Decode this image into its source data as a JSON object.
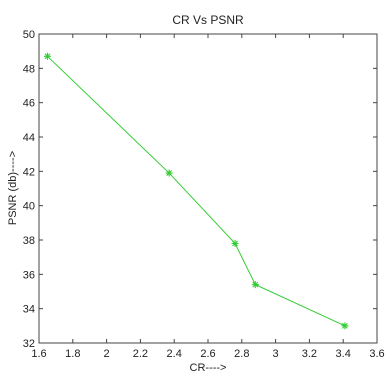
{
  "chart_data": {
    "type": "line",
    "title": "CR Vs PSNR",
    "xlabel": "CR---->",
    "ylabel": "PSNR (db)---->",
    "xlim": [
      1.6,
      3.6
    ],
    "ylim": [
      32,
      50
    ],
    "xticks": [
      1.6,
      1.8,
      2,
      2.2,
      2.4,
      2.6,
      2.8,
      3,
      3.2,
      3.4,
      3.6
    ],
    "xtick_labels": [
      "1.6",
      "1.8",
      "2",
      "2.2",
      "2.4",
      "2.6",
      "2.8",
      "3",
      "3.2",
      "3.4",
      "3.6"
    ],
    "yticks": [
      32,
      34,
      36,
      38,
      40,
      42,
      44,
      46,
      48,
      50
    ],
    "ytick_labels": [
      "32",
      "34",
      "36",
      "38",
      "40",
      "42",
      "44",
      "46",
      "48",
      "50"
    ],
    "grid": false,
    "series": [
      {
        "color": "#33cc33",
        "marker": "asterisk",
        "x": [
          1.65,
          2.37,
          2.76,
          2.88,
          3.41
        ],
        "y": [
          48.7,
          41.9,
          37.8,
          35.4,
          33.0
        ]
      }
    ]
  }
}
